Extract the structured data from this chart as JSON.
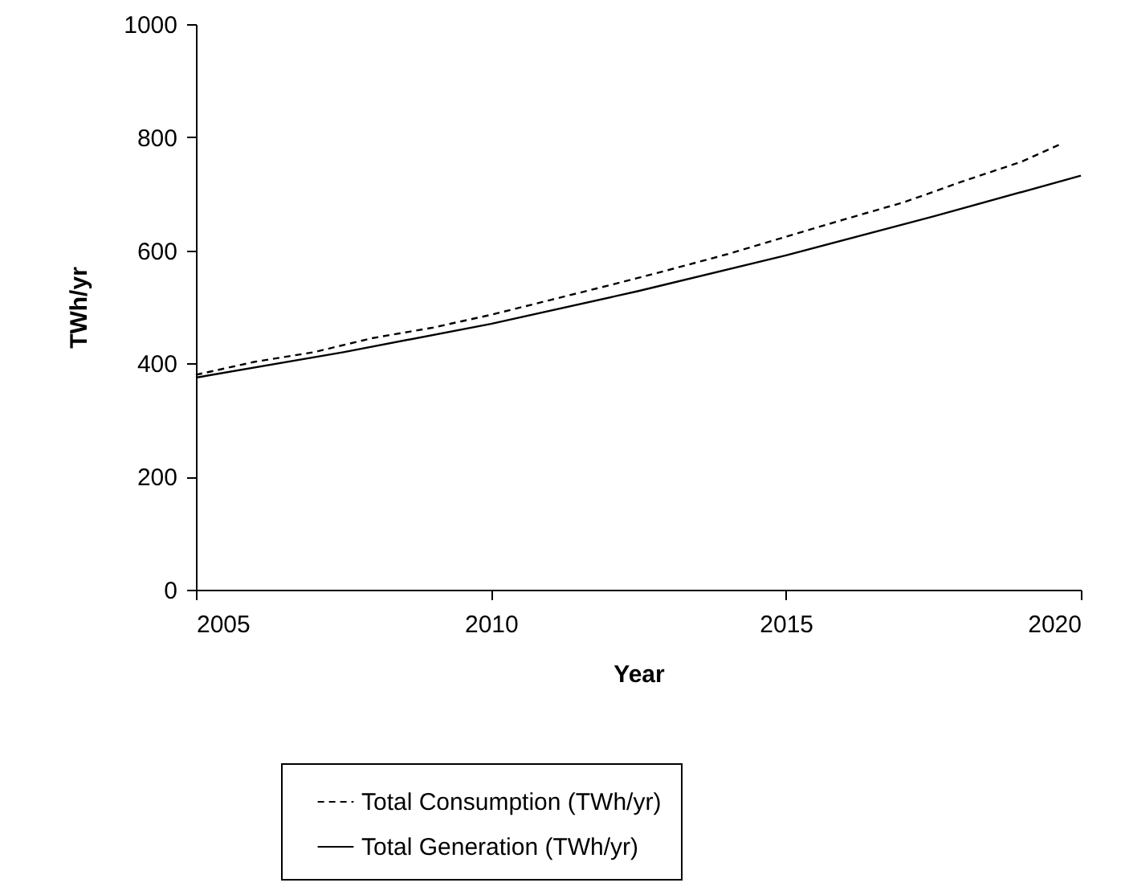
{
  "chart_data": {
    "type": "line",
    "xlabel": "Year",
    "ylabel": "TWh/yr",
    "xlim": [
      2005,
      2020
    ],
    "xticks": [
      2005,
      2010,
      2015,
      2020
    ],
    "ylim": [
      0,
      1000
    ],
    "yticks": [
      0,
      200,
      400,
      600,
      800,
      1000
    ],
    "grid": false,
    "legend": "bottom",
    "series": [
      {
        "name": "Total Consumption (TWh/yr)",
        "color": "#000000",
        "line_style": "dashed",
        "x": [
          2005,
          2006,
          2007,
          2008,
          2009,
          2010,
          2011,
          2012,
          2013,
          2014,
          2015,
          2016,
          2017,
          2018,
          2019,
          2019.7
        ],
        "values": [
          380,
          403,
          420,
          445,
          463,
          486,
          512,
          538,
          565,
          593,
          624,
          655,
          685,
          722,
          757,
          790
        ]
      },
      {
        "name": "Total  Generation (TWh/yr)",
        "color": "#000000",
        "line_style": "solid",
        "x": [
          2005,
          2007.5,
          2010,
          2012.5,
          2015,
          2017.5,
          2020
        ],
        "values": [
          375,
          420,
          470,
          528,
          591,
          660,
          732
        ]
      }
    ]
  }
}
